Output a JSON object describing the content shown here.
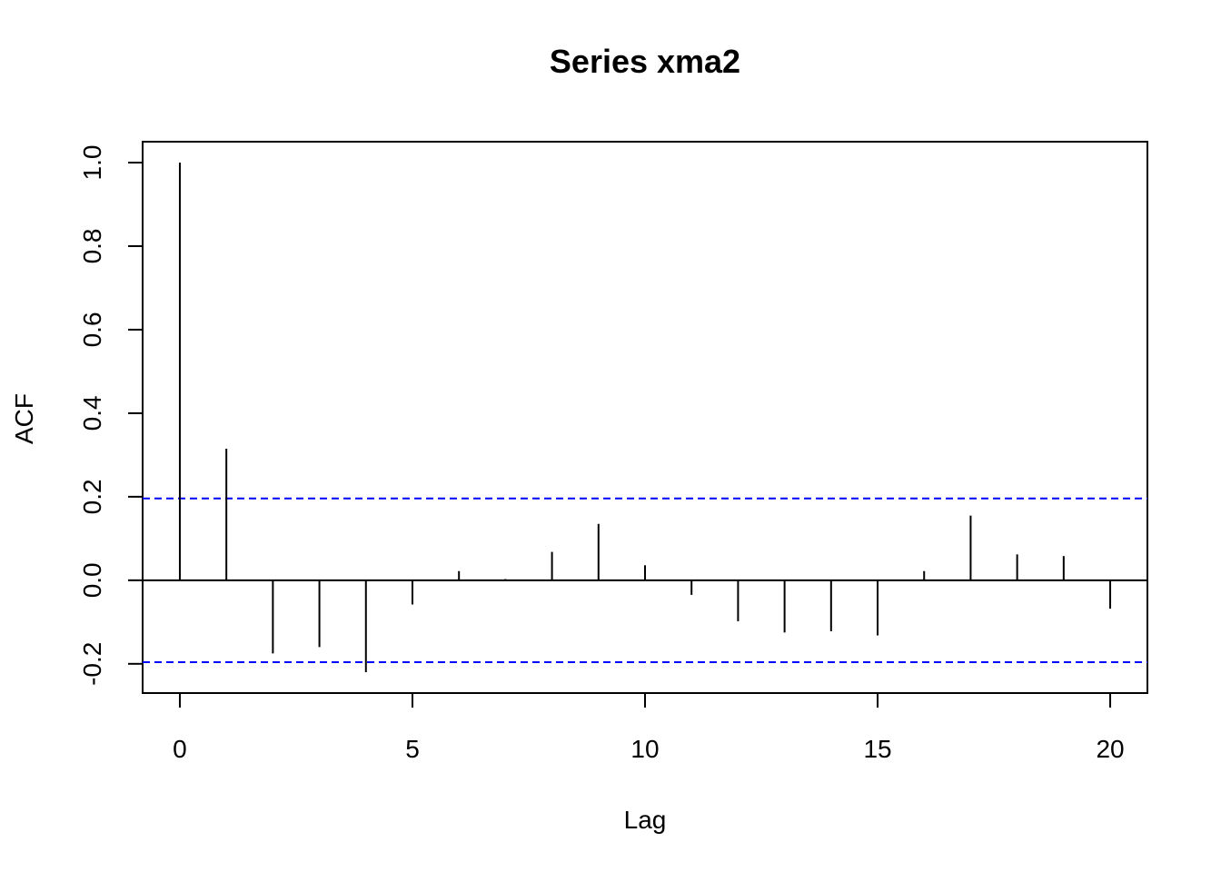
{
  "chart_data": {
    "type": "bar",
    "title": "Series  xma2",
    "xlabel": "Lag",
    "ylabel": "ACF",
    "xlim": [
      -0.8,
      20.8
    ],
    "ylim": [
      -0.27,
      1.05
    ],
    "x_ticks": [
      0,
      5,
      10,
      15,
      20
    ],
    "x_tick_labels": [
      "0",
      "5",
      "10",
      "15",
      "20"
    ],
    "y_ticks": [
      -0.2,
      0.0,
      0.2,
      0.4,
      0.6,
      0.8,
      1.0
    ],
    "y_tick_labels": [
      "-0.2",
      "0.0",
      "0.2",
      "0.4",
      "0.6",
      "0.8",
      "1.0"
    ],
    "lags": [
      0,
      1,
      2,
      3,
      4,
      5,
      6,
      7,
      8,
      9,
      10,
      11,
      12,
      13,
      14,
      15,
      16,
      17,
      18,
      19,
      20
    ],
    "values": [
      1.0,
      0.315,
      -0.175,
      -0.16,
      -0.22,
      -0.058,
      0.022,
      0.003,
      0.068,
      0.135,
      0.036,
      -0.035,
      -0.098,
      -0.125,
      -0.122,
      -0.132,
      0.022,
      0.155,
      0.062,
      0.058,
      -0.068
    ],
    "confidence_bound": 0.196,
    "confidence_line_color": "#0000ff",
    "bar_color": "#000000",
    "grid": false,
    "legend": false
  }
}
